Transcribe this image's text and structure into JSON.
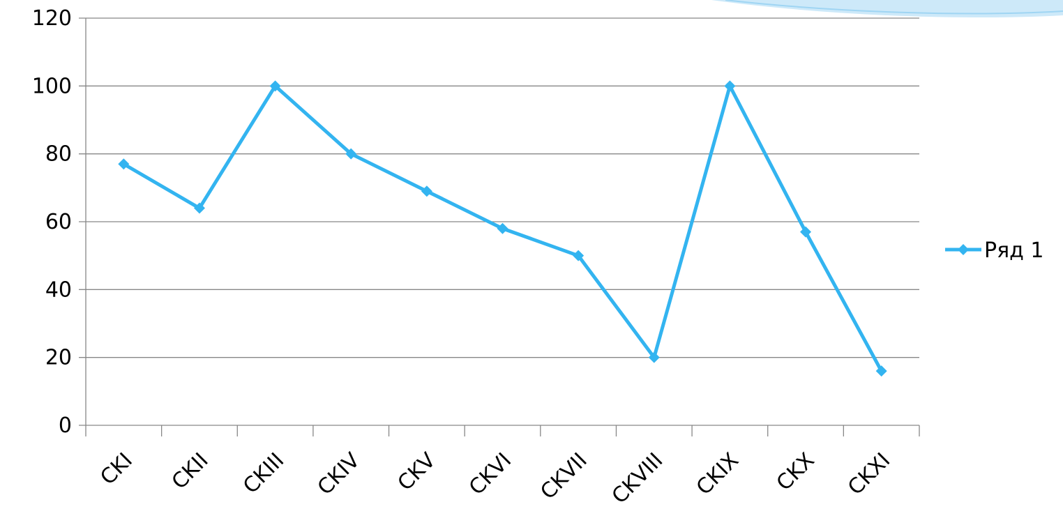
{
  "chart_data": {
    "type": "line",
    "title": "",
    "xlabel": "",
    "ylabel": "",
    "categories": [
      "CKI",
      "CKII",
      "CKIII",
      "CKIV",
      "CKV",
      "CKVI",
      "CKVII",
      "CKVIII",
      "CKIX",
      "CKX",
      "CKXI"
    ],
    "series": [
      {
        "name": "Ряд 1",
        "values": [
          77,
          64,
          100,
          80,
          69,
          58,
          50,
          20,
          100,
          57,
          16
        ]
      }
    ],
    "ylim": [
      0,
      120
    ],
    "yticks": [
      "0",
      "20",
      "40",
      "60",
      "80",
      "100",
      "120"
    ],
    "grid": true,
    "legend_position": "right",
    "colors": {
      "series": "#33b4f0",
      "grid": "#878787",
      "decor": "#cde9f9"
    }
  }
}
